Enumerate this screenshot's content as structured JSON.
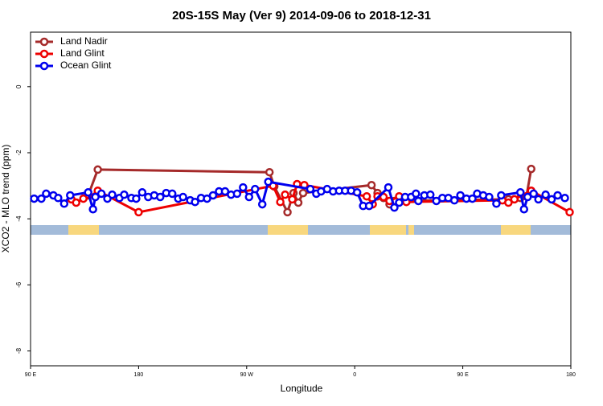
{
  "chart_data": {
    "type": "line",
    "title": "20S-15S May (Ver 9)   2014-09-06 to 2018-12-31",
    "x_label": "Longitude",
    "y_label": "XCO2 - MLO trend (ppm)",
    "xlim": [
      90,
      540
    ],
    "xticks": [
      {
        "value": 90,
        "label": "90 E"
      },
      {
        "value": 180,
        "label": "180"
      },
      {
        "value": 270,
        "label": "90 W"
      },
      {
        "value": 360,
        "label": "0"
      },
      {
        "value": 450,
        "label": "90 E"
      },
      {
        "value": 540,
        "label": "180"
      }
    ],
    "ylim": [
      -8.45,
      1.65
    ],
    "yticks": [
      0,
      -2,
      -4,
      -6,
      -8
    ],
    "legend": "top-left",
    "series": [
      {
        "name": "Land Nadir",
        "color": "#a52a2a",
        "x": [
          138,
          146,
          289,
          293,
          304,
          309,
          313,
          317,
          374,
          379,
          384,
          389,
          393,
          488,
          498,
          503,
          507
        ],
        "values": [
          -3.29,
          -2.51,
          -2.59,
          -3.02,
          -3.8,
          -3.22,
          -3.51,
          -3.22,
          -2.98,
          -3.22,
          -3.37,
          -3.56,
          -3.46,
          -3.41,
          -3.37,
          -3.32,
          -2.49
        ]
      },
      {
        "name": "Land Glint",
        "color": "#ee0000",
        "x": [
          124,
          128,
          134,
          144,
          146,
          180,
          292,
          298,
          302,
          308,
          312,
          318,
          370,
          375,
          379,
          384,
          389,
          397,
          403,
          483,
          488,
          493,
          507,
          539
        ],
        "values": [
          -3.41,
          -3.51,
          -3.39,
          -3.32,
          -3.15,
          -3.8,
          -3.0,
          -3.49,
          -3.27,
          -3.41,
          -2.95,
          -2.98,
          -3.32,
          -3.56,
          -3.32,
          -3.34,
          -3.46,
          -3.32,
          -3.49,
          -3.44,
          -3.51,
          -3.41,
          -3.15,
          -3.8
        ]
      },
      {
        "name": "Ocean Glint",
        "color": "#0000ee",
        "x": [
          93,
          99,
          103,
          109,
          113,
          118,
          123,
          138,
          142,
          144,
          149,
          154,
          158,
          164,
          168,
          174,
          178,
          183,
          188,
          193,
          198,
          203,
          208,
          213,
          217,
          223,
          227,
          232,
          237,
          242,
          247,
          252,
          257,
          262,
          267,
          272,
          277,
          283,
          288,
          323,
          328,
          332,
          337,
          342,
          347,
          352,
          357,
          362,
          367,
          372,
          388,
          393,
          397,
          402,
          407,
          411,
          413,
          418,
          423,
          428,
          433,
          438,
          443,
          448,
          453,
          458,
          462,
          467,
          472,
          478,
          482,
          498,
          501,
          504,
          509,
          513,
          519,
          524,
          529,
          535
        ],
        "values": [
          -3.39,
          -3.39,
          -3.24,
          -3.29,
          -3.37,
          -3.54,
          -3.29,
          -3.2,
          -3.71,
          -3.34,
          -3.24,
          -3.39,
          -3.27,
          -3.37,
          -3.27,
          -3.37,
          -3.39,
          -3.2,
          -3.34,
          -3.29,
          -3.34,
          -3.22,
          -3.24,
          -3.39,
          -3.34,
          -3.44,
          -3.49,
          -3.37,
          -3.39,
          -3.29,
          -3.17,
          -3.17,
          -3.27,
          -3.24,
          -3.05,
          -3.34,
          -3.1,
          -3.56,
          -2.88,
          -3.1,
          -3.24,
          -3.17,
          -3.1,
          -3.17,
          -3.15,
          -3.15,
          -3.15,
          -3.2,
          -3.61,
          -3.61,
          -3.05,
          -3.66,
          -3.51,
          -3.34,
          -3.34,
          -3.24,
          -3.46,
          -3.29,
          -3.27,
          -3.46,
          -3.37,
          -3.37,
          -3.44,
          -3.29,
          -3.39,
          -3.39,
          -3.24,
          -3.29,
          -3.34,
          -3.54,
          -3.29,
          -3.2,
          -3.71,
          -3.34,
          -3.24,
          -3.41,
          -3.27,
          -3.41,
          -3.29,
          -3.37
        ]
      }
    ]
  }
}
